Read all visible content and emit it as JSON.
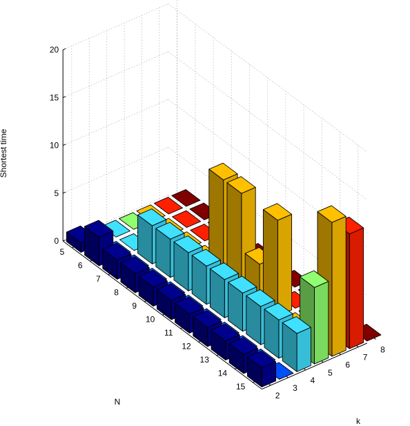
{
  "chart_data": {
    "type": "bar3",
    "title": "",
    "xlabel": "k",
    "ylabel": "N",
    "zlabel": "Shortest time",
    "k": [
      2,
      3,
      4,
      5,
      6,
      7,
      8
    ],
    "N": [
      5,
      6,
      7,
      8,
      9,
      10,
      11,
      12,
      13,
      14,
      15
    ],
    "zlim": [
      0,
      20
    ],
    "zticks": [
      0,
      5,
      10,
      15,
      20
    ],
    "grid": true,
    "colormap": "jet",
    "colors": [
      "#00008f",
      "#0050ff",
      "#40e0ff",
      "#90ff70",
      "#ffc000",
      "#ff2000",
      "#800000"
    ],
    "series": [
      {
        "k": 2,
        "values": [
          1,
          3,
          2,
          2,
          2,
          2,
          2,
          2,
          2,
          2,
          2
        ]
      },
      {
        "k": 3,
        "values": [
          0,
          0,
          0,
          0,
          0,
          0,
          0,
          0,
          0,
          0,
          0
        ]
      },
      {
        "k": 4,
        "values": [
          0,
          0,
          4,
          4,
          4,
          4,
          4,
          4,
          4,
          4,
          4
        ]
      },
      {
        "k": 5,
        "values": [
          0,
          0,
          0,
          0,
          0,
          0,
          0,
          0,
          0,
          0,
          8
        ]
      },
      {
        "k": 6,
        "values": [
          0,
          0,
          0,
          0,
          10,
          10,
          4,
          10,
          0,
          0,
          14
        ]
      },
      {
        "k": 7,
        "values": [
          0,
          0,
          0,
          0,
          0,
          0,
          0,
          0,
          0,
          0,
          12
        ]
      },
      {
        "k": 8,
        "values": [
          0,
          0,
          0,
          0,
          0,
          0,
          0,
          0,
          0,
          0,
          0
        ]
      }
    ]
  }
}
